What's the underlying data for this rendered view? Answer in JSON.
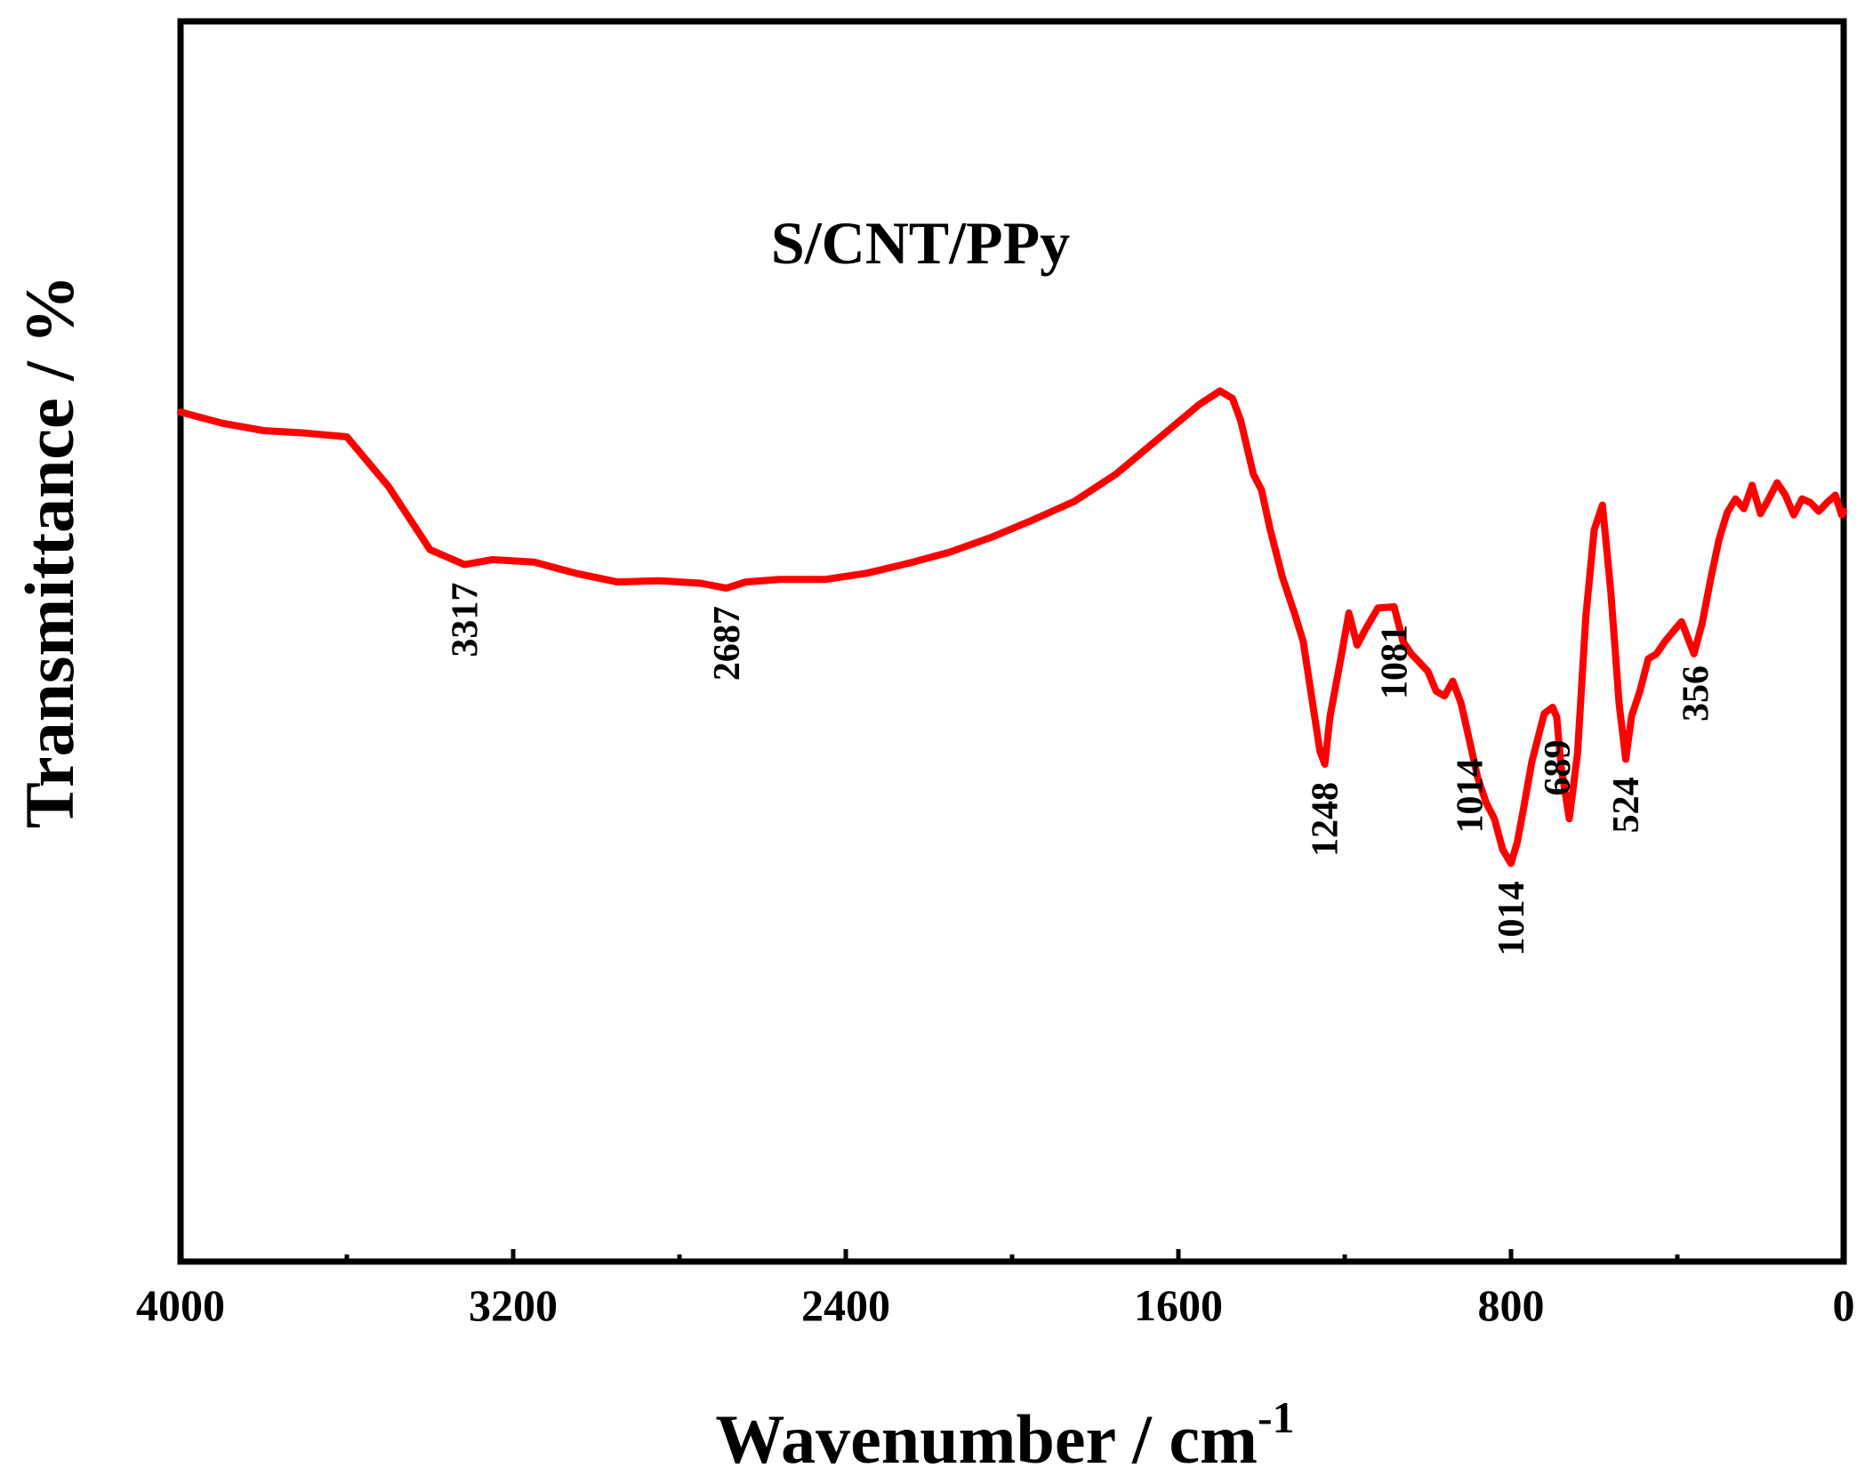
{
  "chart_data": {
    "type": "line",
    "title": "",
    "sample_label": "S/CNT/PPy",
    "xlabel": "Wavenumber / cm",
    "xlabel_sup": "-1",
    "ylabel": "Transmittance / %",
    "xlim": [
      4000,
      0
    ],
    "ylim": [
      0,
      100
    ],
    "grid": false,
    "x_ticks": [
      {
        "value": 4000,
        "label": "4000"
      },
      {
        "value": 3200,
        "label": "3200"
      },
      {
        "value": 2400,
        "label": "2400"
      },
      {
        "value": 1600,
        "label": "1600"
      },
      {
        "value": 800,
        "label": "800"
      },
      {
        "value": 0,
        "label": "0"
      }
    ],
    "minor_ticks": [
      3600,
      2800,
      2000,
      1200,
      400
    ],
    "series": [
      {
        "name": "S/CNT/PPy",
        "color": "#ff0000",
        "x": [
          4000,
          3900,
          3800,
          3700,
          3600,
          3500,
          3400,
          3317,
          3250,
          3150,
          3050,
          2950,
          2850,
          2750,
          2687,
          2640,
          2560,
          2450,
          2350,
          2250,
          2150,
          2050,
          1950,
          1850,
          1750,
          1650,
          1550,
          1500,
          1470,
          1450,
          1420,
          1400,
          1380,
          1350,
          1320,
          1300,
          1260,
          1248,
          1235,
          1210,
          1190,
          1170,
          1150,
          1120,
          1081,
          1060,
          1040,
          1000,
          980,
          960,
          940,
          920,
          900,
          880,
          860,
          840,
          820,
          800,
          785,
          770,
          750,
          720,
          700,
          690,
          680,
          660,
          640,
          620,
          600,
          580,
          560,
          550,
          540,
          524,
          510,
          490,
          470,
          450,
          430,
          410,
          390,
          360,
          340,
          320,
          300,
          280,
          260,
          240,
          220,
          200,
          180,
          160,
          140,
          120,
          100,
          80,
          60,
          40,
          20,
          5,
          0
        ],
        "y": [
          68.5,
          67.6,
          67,
          66.8,
          66.5,
          62.5,
          57.4,
          56.2,
          56.6,
          56.4,
          55.5,
          54.8,
          54.9,
          54.7,
          54.3,
          54.8,
          55,
          55,
          55.5,
          56.3,
          57.2,
          58.4,
          59.8,
          61.3,
          63.5,
          66.3,
          69.1,
          70.2,
          69.6,
          67.8,
          63.5,
          62.2,
          59.1,
          55.2,
          52.2,
          50,
          41.2,
          40.1,
          44,
          48.5,
          52.3,
          49.7,
          51,
          52.7,
          52.8,
          50,
          49,
          47.6,
          46,
          45.6,
          46.8,
          45,
          42,
          39,
          37,
          35.7,
          33.2,
          32.1,
          33.8,
          36.5,
          40.3,
          44.2,
          44.7,
          43.9,
          40,
          35.7,
          41,
          52,
          59,
          61,
          54,
          49.5,
          45,
          40.5,
          44,
          46,
          48.6,
          49,
          50,
          50.8,
          51.6,
          49,
          51.5,
          55,
          58.2,
          60.4,
          61.5,
          60.7,
          62.6,
          60.3,
          61.5,
          62.8,
          61.8,
          60.2,
          61.5,
          61.2,
          60.5,
          61.2,
          61.8,
          60.2,
          60.5
        ]
      }
    ],
    "annotations": [
      {
        "label": "3317",
        "x": 3317
      },
      {
        "label": "2687",
        "x": 2687
      },
      {
        "label": "1248",
        "x": 1248
      },
      {
        "label": "1081",
        "x": 1081
      },
      {
        "label": "1014",
        "x": 900
      },
      {
        "label": "1014",
        "x": 800
      },
      {
        "label": "689",
        "x": 689
      },
      {
        "label": "524",
        "x": 524
      },
      {
        "label": "356",
        "x": 356
      }
    ]
  }
}
